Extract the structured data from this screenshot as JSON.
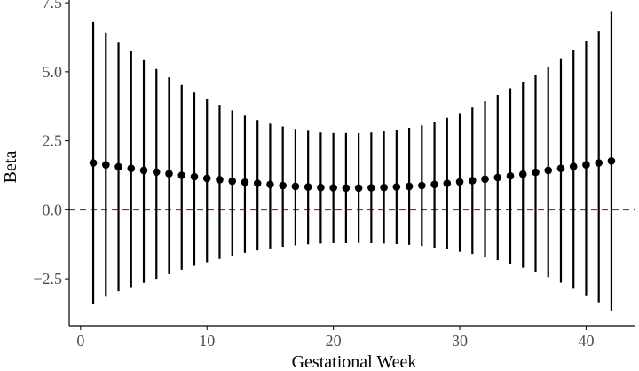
{
  "chart_data": {
    "type": "scatter",
    "title": "",
    "xlabel": "Gestational Week",
    "ylabel": "Beta",
    "xlim": [
      -0.9,
      43.9
    ],
    "ylim": [
      -4.2,
      7.6
    ],
    "x_ticks": [
      0,
      10,
      20,
      30,
      40
    ],
    "x_tick_labels": [
      "0",
      "10",
      "20",
      "30",
      "40"
    ],
    "y_ticks": [
      -2.5,
      0.0,
      2.5,
      5.0,
      7.5
    ],
    "y_tick_labels": [
      "−2.5",
      "0.0",
      "2.5",
      "5.0",
      "7.5"
    ],
    "grid": false,
    "legend": "none",
    "reference_line": {
      "y": 0,
      "style": "dashed",
      "color": "#ff0000"
    },
    "colors": {
      "points": "#000000",
      "error_bars": "#000000",
      "axis": "#000000",
      "tick_text": "#4d4d4d"
    },
    "series": [
      {
        "x": [
          1,
          2,
          3,
          4,
          5,
          6,
          7,
          8,
          9,
          10,
          11,
          12,
          13,
          14,
          15,
          16,
          17,
          18,
          19,
          20,
          21,
          22,
          23,
          24,
          25,
          26,
          27,
          28,
          29,
          30,
          31,
          32,
          33,
          34,
          35,
          36,
          37,
          38,
          39,
          40,
          41,
          42
        ],
        "y": [
          1.7,
          1.63,
          1.56,
          1.5,
          1.43,
          1.37,
          1.31,
          1.25,
          1.2,
          1.14,
          1.09,
          1.04,
          1.0,
          0.96,
          0.92,
          0.88,
          0.85,
          0.83,
          0.81,
          0.8,
          0.79,
          0.79,
          0.8,
          0.81,
          0.83,
          0.85,
          0.88,
          0.92,
          0.96,
          1.01,
          1.06,
          1.11,
          1.17,
          1.23,
          1.29,
          1.36,
          1.43,
          1.5,
          1.57,
          1.63,
          1.7,
          1.77
        ],
        "ymin": [
          -3.4,
          -3.15,
          -2.95,
          -2.8,
          -2.65,
          -2.5,
          -2.33,
          -2.17,
          -2.03,
          -1.9,
          -1.78,
          -1.66,
          -1.56,
          -1.47,
          -1.4,
          -1.34,
          -1.29,
          -1.25,
          -1.22,
          -1.21,
          -1.21,
          -1.2,
          -1.21,
          -1.22,
          -1.24,
          -1.27,
          -1.31,
          -1.37,
          -1.43,
          -1.52,
          -1.6,
          -1.7,
          -1.82,
          -1.95,
          -2.1,
          -2.26,
          -2.44,
          -2.64,
          -2.86,
          -3.1,
          -3.35,
          -3.65
        ],
        "ymax": [
          6.8,
          6.42,
          6.08,
          5.74,
          5.42,
          5.1,
          4.8,
          4.52,
          4.25,
          4.02,
          3.8,
          3.6,
          3.41,
          3.25,
          3.12,
          3.02,
          2.93,
          2.86,
          2.8,
          2.78,
          2.78,
          2.78,
          2.8,
          2.84,
          2.9,
          2.97,
          3.06,
          3.19,
          3.33,
          3.5,
          3.7,
          3.93,
          4.16,
          4.4,
          4.64,
          4.9,
          5.18,
          5.49,
          5.8,
          6.12,
          6.47,
          7.2
        ]
      }
    ]
  }
}
